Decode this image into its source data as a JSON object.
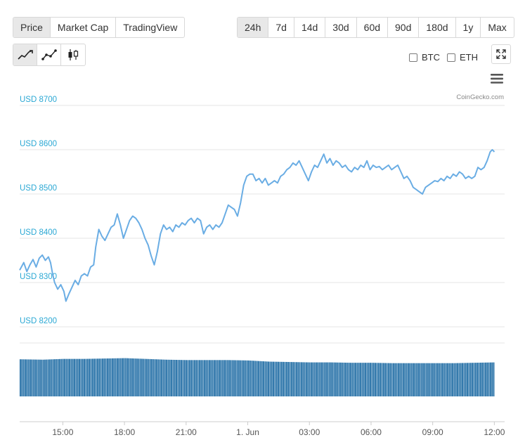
{
  "metric_tabs": [
    "Price",
    "Market Cap",
    "TradingView"
  ],
  "metric_active": 0,
  "range_tabs": [
    "24h",
    "7d",
    "14d",
    "30d",
    "60d",
    "90d",
    "180d",
    "1y",
    "Max"
  ],
  "range_active": 0,
  "chart_types": [
    {
      "icon": "area-chart-icon"
    },
    {
      "icon": "line-chart-icon"
    },
    {
      "icon": "candlestick-chart-icon"
    }
  ],
  "compare": {
    "btc": "BTC",
    "eth": "ETH"
  },
  "credit": "CoinGecko.com",
  "colors": {
    "line": "#6aade4",
    "volume": "#1c6aa3",
    "axis_label": "#2ba8d4",
    "grid": "#e6e6e6"
  },
  "chart_data": {
    "type": "line",
    "y_axis": {
      "ticks": [
        8200,
        8300,
        8400,
        8500,
        8600,
        8700
      ],
      "tick_labels": [
        "USD 8200",
        "USD 8300",
        "USD 8400",
        "USD 8500",
        "USD 8600",
        "USD 8700"
      ],
      "range": [
        8200,
        8700
      ]
    },
    "x_axis": {
      "ticks": [
        15,
        18,
        21,
        24,
        27,
        30,
        33,
        36
      ],
      "tick_labels": [
        "15:00",
        "18:00",
        "21:00",
        "1. Jun",
        "03:00",
        "06:00",
        "09:00",
        "12:00"
      ],
      "range": [
        12.9,
        36.5
      ]
    },
    "price_series": [
      [
        12.9,
        8328
      ],
      [
        13.1,
        8345
      ],
      [
        13.25,
        8325
      ],
      [
        13.4,
        8340
      ],
      [
        13.55,
        8352
      ],
      [
        13.7,
        8335
      ],
      [
        13.85,
        8355
      ],
      [
        14.0,
        8362
      ],
      [
        14.15,
        8350
      ],
      [
        14.3,
        8358
      ],
      [
        14.4,
        8345
      ],
      [
        14.5,
        8320
      ],
      [
        14.6,
        8300
      ],
      [
        14.75,
        8285
      ],
      [
        14.9,
        8295
      ],
      [
        15.05,
        8280
      ],
      [
        15.15,
        8258
      ],
      [
        15.3,
        8275
      ],
      [
        15.45,
        8290
      ],
      [
        15.6,
        8305
      ],
      [
        15.75,
        8295
      ],
      [
        15.9,
        8315
      ],
      [
        16.05,
        8320
      ],
      [
        16.2,
        8315
      ],
      [
        16.35,
        8335
      ],
      [
        16.5,
        8340
      ],
      [
        16.6,
        8380
      ],
      [
        16.75,
        8420
      ],
      [
        16.9,
        8405
      ],
      [
        17.05,
        8395
      ],
      [
        17.2,
        8410
      ],
      [
        17.35,
        8425
      ],
      [
        17.5,
        8430
      ],
      [
        17.65,
        8455
      ],
      [
        17.8,
        8430
      ],
      [
        17.95,
        8400
      ],
      [
        18.1,
        8420
      ],
      [
        18.25,
        8440
      ],
      [
        18.4,
        8450
      ],
      [
        18.55,
        8445
      ],
      [
        18.7,
        8435
      ],
      [
        18.85,
        8420
      ],
      [
        19.0,
        8400
      ],
      [
        19.15,
        8385
      ],
      [
        19.3,
        8360
      ],
      [
        19.45,
        8340
      ],
      [
        19.6,
        8370
      ],
      [
        19.75,
        8410
      ],
      [
        19.9,
        8430
      ],
      [
        20.05,
        8420
      ],
      [
        20.2,
        8425
      ],
      [
        20.35,
        8415
      ],
      [
        20.5,
        8430
      ],
      [
        20.65,
        8425
      ],
      [
        20.8,
        8435
      ],
      [
        20.95,
        8430
      ],
      [
        21.1,
        8440
      ],
      [
        21.25,
        8445
      ],
      [
        21.4,
        8435
      ],
      [
        21.55,
        8445
      ],
      [
        21.7,
        8440
      ],
      [
        21.85,
        8410
      ],
      [
        22.0,
        8425
      ],
      [
        22.15,
        8430
      ],
      [
        22.3,
        8420
      ],
      [
        22.45,
        8430
      ],
      [
        22.6,
        8425
      ],
      [
        22.75,
        8435
      ],
      [
        22.9,
        8455
      ],
      [
        23.05,
        8475
      ],
      [
        23.2,
        8470
      ],
      [
        23.35,
        8465
      ],
      [
        23.5,
        8450
      ],
      [
        23.65,
        8480
      ],
      [
        23.8,
        8520
      ],
      [
        23.95,
        8540
      ],
      [
        24.1,
        8545
      ],
      [
        24.25,
        8545
      ],
      [
        24.4,
        8530
      ],
      [
        24.55,
        8535
      ],
      [
        24.7,
        8525
      ],
      [
        24.85,
        8535
      ],
      [
        25.0,
        8520
      ],
      [
        25.15,
        8525
      ],
      [
        25.3,
        8530
      ],
      [
        25.45,
        8525
      ],
      [
        25.6,
        8540
      ],
      [
        25.75,
        8545
      ],
      [
        25.9,
        8555
      ],
      [
        26.05,
        8560
      ],
      [
        26.2,
        8570
      ],
      [
        26.35,
        8565
      ],
      [
        26.5,
        8575
      ],
      [
        26.65,
        8560
      ],
      [
        26.8,
        8545
      ],
      [
        26.95,
        8530
      ],
      [
        27.1,
        8550
      ],
      [
        27.25,
        8565
      ],
      [
        27.4,
        8560
      ],
      [
        27.55,
        8575
      ],
      [
        27.7,
        8590
      ],
      [
        27.85,
        8570
      ],
      [
        28.0,
        8580
      ],
      [
        28.15,
        8565
      ],
      [
        28.3,
        8575
      ],
      [
        28.45,
        8570
      ],
      [
        28.6,
        8560
      ],
      [
        28.75,
        8565
      ],
      [
        28.9,
        8555
      ],
      [
        29.05,
        8550
      ],
      [
        29.2,
        8560
      ],
      [
        29.35,
        8555
      ],
      [
        29.5,
        8565
      ],
      [
        29.65,
        8560
      ],
      [
        29.8,
        8575
      ],
      [
        29.95,
        8555
      ],
      [
        30.1,
        8565
      ],
      [
        30.25,
        8560
      ],
      [
        30.4,
        8562
      ],
      [
        30.55,
        8555
      ],
      [
        30.7,
        8560
      ],
      [
        30.85,
        8565
      ],
      [
        31.0,
        8555
      ],
      [
        31.15,
        8560
      ],
      [
        31.3,
        8565
      ],
      [
        31.45,
        8550
      ],
      [
        31.6,
        8535
      ],
      [
        31.75,
        8540
      ],
      [
        31.9,
        8530
      ],
      [
        32.05,
        8515
      ],
      [
        32.2,
        8510
      ],
      [
        32.35,
        8505
      ],
      [
        32.5,
        8500
      ],
      [
        32.65,
        8515
      ],
      [
        32.8,
        8520
      ],
      [
        32.95,
        8525
      ],
      [
        33.1,
        8530
      ],
      [
        33.25,
        8528
      ],
      [
        33.4,
        8535
      ],
      [
        33.55,
        8530
      ],
      [
        33.7,
        8540
      ],
      [
        33.85,
        8535
      ],
      [
        34.0,
        8545
      ],
      [
        34.15,
        8540
      ],
      [
        34.3,
        8550
      ],
      [
        34.45,
        8545
      ],
      [
        34.6,
        8535
      ],
      [
        34.75,
        8540
      ],
      [
        34.9,
        8535
      ],
      [
        35.05,
        8540
      ],
      [
        35.2,
        8560
      ],
      [
        35.35,
        8555
      ],
      [
        35.5,
        8560
      ],
      [
        35.65,
        8575
      ],
      [
        35.8,
        8595
      ],
      [
        35.9,
        8600
      ],
      [
        36.0,
        8595
      ]
    ],
    "volume_series": [
      [
        12.9,
        0.96
      ],
      [
        14.0,
        0.95
      ],
      [
        15.0,
        0.97
      ],
      [
        16.0,
        0.97
      ],
      [
        17.0,
        0.98
      ],
      [
        18.0,
        0.99
      ],
      [
        19.0,
        0.97
      ],
      [
        20.0,
        0.95
      ],
      [
        21.0,
        0.94
      ],
      [
        22.0,
        0.94
      ],
      [
        23.0,
        0.94
      ],
      [
        24.0,
        0.93
      ],
      [
        25.0,
        0.9
      ],
      [
        26.0,
        0.89
      ],
      [
        27.0,
        0.88
      ],
      [
        28.0,
        0.88
      ],
      [
        29.0,
        0.87
      ],
      [
        30.0,
        0.87
      ],
      [
        31.0,
        0.86
      ],
      [
        32.0,
        0.86
      ],
      [
        33.0,
        0.86
      ],
      [
        34.0,
        0.86
      ],
      [
        35.0,
        0.87
      ],
      [
        36.0,
        0.88
      ]
    ]
  }
}
